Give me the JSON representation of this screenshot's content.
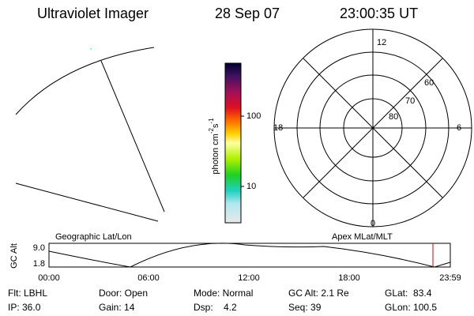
{
  "header": {
    "instrument": "Ultraviolet Imager",
    "date": "28 Sep 07",
    "time": "23:00:35 UT"
  },
  "colorbar": {
    "label": [
      "photon cm",
      "-2",
      "s",
      "-1"
    ],
    "ticks": [
      "100",
      "10"
    ]
  },
  "polar": {
    "mlt_labels": [
      "12",
      "6",
      "0",
      "18"
    ],
    "lat_labels": [
      "60",
      "70",
      "80"
    ]
  },
  "timeline": {
    "left_title": "Geographic Lat/Lon",
    "right_title": "Apex MLat/MLT",
    "y_title": "GC Alt",
    "y_labels": [
      "9.0",
      "1.8"
    ],
    "x_labels": [
      "00:00",
      "06:00",
      "12:00",
      "18:00",
      "23:59"
    ]
  },
  "status": [
    [
      "Flt: LBHL",
      "Door: Open",
      "Mode: Normal",
      "GC Alt: 2.1 Re",
      "GLat:  83.4"
    ],
    [
      "IP: 36.0",
      "Gain: 14",
      "Dsp:    4.2",
      "Seq: 39",
      "GLon: 100.5"
    ]
  ]
}
